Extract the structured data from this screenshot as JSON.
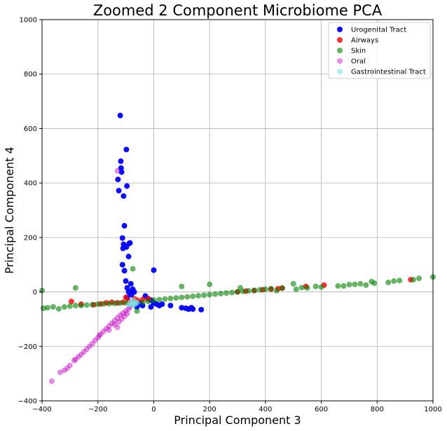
{
  "chart_data": {
    "type": "scatter",
    "title": "Zoomed 2 Component Microbiome PCA",
    "xlabel": "Principal Component 3",
    "ylabel": "Principal Component 4",
    "xlim": [
      -400,
      1000
    ],
    "ylim": [
      -400,
      1000
    ],
    "xticks": [
      -400,
      -200,
      0,
      200,
      400,
      600,
      800,
      1000
    ],
    "yticks": [
      -400,
      -200,
      0,
      200,
      400,
      600,
      800,
      1000
    ],
    "grid": true,
    "legend_position": "top-right",
    "series": [
      {
        "name": "Urogenital Tract",
        "color": "#0000ff",
        "alpha": 0.95,
        "points": [
          [
            -120,
            648
          ],
          [
            -98,
            523
          ],
          [
            -118,
            480
          ],
          [
            -117,
            455
          ],
          [
            -115,
            440
          ],
          [
            -128,
            413
          ],
          [
            -96,
            389
          ],
          [
            -125,
            372
          ],
          [
            -108,
            352
          ],
          [
            -105,
            243
          ],
          [
            -112,
            198
          ],
          [
            -110,
            160
          ],
          [
            -108,
            175
          ],
          [
            -85,
            180
          ],
          [
            -88,
            178
          ],
          [
            -98,
            165
          ],
          [
            -90,
            130
          ],
          [
            -112,
            100
          ],
          [
            -105,
            78
          ],
          [
            0,
            80
          ],
          [
            -100,
            40
          ],
          [
            -82,
            30
          ],
          [
            -95,
            15
          ],
          [
            -90,
            0
          ],
          [
            -75,
            10
          ],
          [
            -70,
            0
          ],
          [
            -80,
            -10
          ],
          [
            -95,
            -20
          ],
          [
            -30,
            -15
          ],
          [
            -20,
            -25
          ],
          [
            -10,
            -30
          ],
          [
            0,
            -40
          ],
          [
            10,
            -45
          ],
          [
            20,
            -50
          ],
          [
            -10,
            -55
          ],
          [
            -40,
            -50
          ],
          [
            -60,
            -55
          ],
          [
            -50,
            -40
          ],
          [
            100,
            -58
          ],
          [
            115,
            -60
          ],
          [
            125,
            -63
          ],
          [
            140,
            -63
          ],
          [
            170,
            -65
          ],
          [
            135,
            -58
          ],
          [
            30,
            -45
          ],
          [
            60,
            -50
          ]
        ]
      },
      {
        "name": "Airways",
        "color": "#ff0000",
        "alpha": 0.8,
        "points": [
          [
            -295,
            -35
          ],
          [
            -260,
            -45
          ],
          [
            -215,
            -47
          ],
          [
            -190,
            -44
          ],
          [
            -170,
            -40
          ],
          [
            -150,
            -38
          ],
          [
            -130,
            -40
          ],
          [
            -110,
            -38
          ],
          [
            -90,
            -35
          ],
          [
            -60,
            -30
          ],
          [
            -40,
            -28
          ],
          [
            -20,
            -25
          ],
          [
            300,
            0
          ],
          [
            330,
            3
          ],
          [
            360,
            5
          ],
          [
            390,
            8
          ],
          [
            420,
            10
          ],
          [
            445,
            12
          ],
          [
            460,
            14
          ],
          [
            545,
            20
          ],
          [
            610,
            25
          ],
          [
            920,
            45
          ],
          [
            -100,
            -20
          ],
          [
            -70,
            -25
          ]
        ]
      },
      {
        "name": "Skin",
        "color": "#008000",
        "alpha": 0.6,
        "points": [
          [
            -400,
            5
          ],
          [
            -395,
            -60
          ],
          [
            -380,
            -58
          ],
          [
            -360,
            -55
          ],
          [
            -340,
            -62
          ],
          [
            -320,
            -55
          ],
          [
            -300,
            -52
          ],
          [
            -280,
            -50
          ],
          [
            -280,
            15
          ],
          [
            -260,
            -50
          ],
          [
            -240,
            -48
          ],
          [
            -220,
            -47
          ],
          [
            -200,
            -45
          ],
          [
            -180,
            -44
          ],
          [
            -160,
            -43
          ],
          [
            -140,
            -42
          ],
          [
            -120,
            -41
          ],
          [
            -100,
            -40
          ],
          [
            -75,
            85
          ],
          [
            -60,
            -70
          ],
          [
            -40,
            -38
          ],
          [
            -20,
            -35
          ],
          [
            0,
            -30
          ],
          [
            20,
            -28
          ],
          [
            40,
            -26
          ],
          [
            60,
            -24
          ],
          [
            80,
            -22
          ],
          [
            100,
            20
          ],
          [
            100,
            -20
          ],
          [
            120,
            -18
          ],
          [
            140,
            -16
          ],
          [
            160,
            -14
          ],
          [
            180,
            -12
          ],
          [
            200,
            28
          ],
          [
            200,
            -10
          ],
          [
            220,
            -8
          ],
          [
            240,
            -6
          ],
          [
            260,
            -4
          ],
          [
            280,
            -2
          ],
          [
            300,
            0
          ],
          [
            310,
            15
          ],
          [
            320,
            2
          ],
          [
            340,
            4
          ],
          [
            360,
            6
          ],
          [
            380,
            8
          ],
          [
            400,
            10
          ],
          [
            420,
            12
          ],
          [
            440,
            5
          ],
          [
            460,
            14
          ],
          [
            500,
            30
          ],
          [
            510,
            10
          ],
          [
            530,
            16
          ],
          [
            550,
            15
          ],
          [
            580,
            20
          ],
          [
            600,
            18
          ],
          [
            660,
            22
          ],
          [
            680,
            22
          ],
          [
            700,
            27
          ],
          [
            720,
            28
          ],
          [
            740,
            30
          ],
          [
            760,
            25
          ],
          [
            780,
            38
          ],
          [
            790,
            32
          ],
          [
            840,
            35
          ],
          [
            860,
            40
          ],
          [
            880,
            42
          ],
          [
            930,
            45
          ],
          [
            950,
            50
          ],
          [
            1000,
            55
          ]
        ]
      },
      {
        "name": "Oral",
        "color": "#bf00bf",
        "alpha": 0.45,
        "points": [
          [
            -365,
            -328
          ],
          [
            -335,
            -295
          ],
          [
            -320,
            -288
          ],
          [
            -310,
            -280
          ],
          [
            -300,
            -270
          ],
          [
            -285,
            -252
          ],
          [
            -280,
            -248
          ],
          [
            -270,
            -238
          ],
          [
            -260,
            -230
          ],
          [
            -250,
            -220
          ],
          [
            -240,
            -210
          ],
          [
            -230,
            -200
          ],
          [
            -220,
            -190
          ],
          [
            -210,
            -178
          ],
          [
            -200,
            -168
          ],
          [
            -195,
            -160
          ],
          [
            -190,
            -155
          ],
          [
            -180,
            -145
          ],
          [
            -170,
            -135
          ],
          [
            -160,
            -125
          ],
          [
            -150,
            -115
          ],
          [
            -140,
            -105
          ],
          [
            -130,
            -95
          ],
          [
            -130,
            -130
          ],
          [
            -120,
            -85
          ],
          [
            -110,
            -78
          ],
          [
            -100,
            -70
          ],
          [
            -90,
            -62
          ],
          [
            -85,
            -55
          ],
          [
            -80,
            -48
          ],
          [
            -75,
            -42
          ],
          [
            -70,
            -38
          ],
          [
            -140,
            -120
          ],
          [
            -160,
            -140
          ],
          [
            -125,
            -110
          ],
          [
            -115,
            -100
          ],
          [
            -105,
            -90
          ],
          [
            -95,
            -80
          ],
          [
            -130,
            445
          ]
        ]
      },
      {
        "name": "Gastrointestinal Tract",
        "color": "#7fdfdf",
        "alpha": 0.6,
        "points": [
          [
            -75,
            -50
          ],
          [
            -80,
            -45
          ],
          [
            -70,
            -42
          ],
          [
            -85,
            -40
          ],
          [
            -65,
            -38
          ],
          [
            -78,
            -35
          ],
          [
            -72,
            -30
          ],
          [
            -88,
            -48
          ],
          [
            -68,
            -45
          ],
          [
            -60,
            -40
          ]
        ]
      }
    ]
  }
}
